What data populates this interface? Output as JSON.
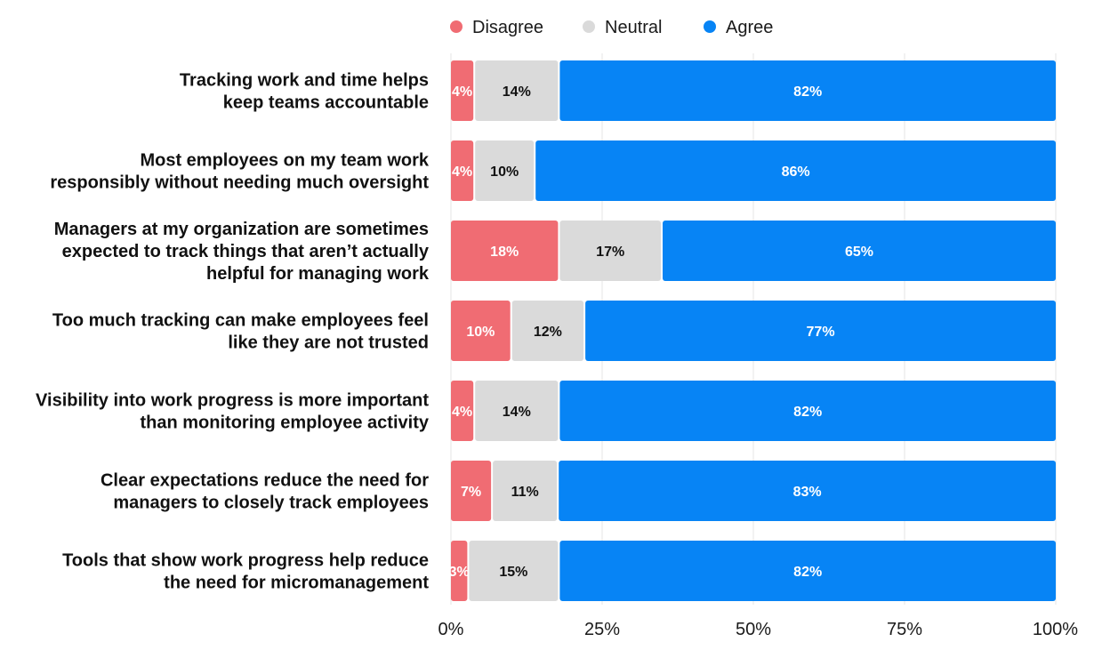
{
  "chart_data": {
    "type": "bar",
    "orientation": "horizontal",
    "stacked": true,
    "categories": [
      [
        "Tracking work and time helps",
        "keep teams accountable"
      ],
      [
        "Most employees on my team work",
        "responsibly without needing much oversight"
      ],
      [
        "Managers at my organization are sometimes",
        "expected to track things that aren’t actually",
        "helpful for managing work"
      ],
      [
        "Too much tracking can make employees feel",
        "like they are not trusted"
      ],
      [
        "Visibility into work progress is more important",
        "than monitoring employee activity"
      ],
      [
        "Clear expectations reduce the need for",
        "managers to closely track employees"
      ],
      [
        "Tools that show work progress help reduce",
        "the need for micromanagement"
      ]
    ],
    "series": [
      {
        "name": "Disagree",
        "color": "#F06C73",
        "label_color": "#ffffff",
        "values": [
          4,
          4,
          18,
          10,
          4,
          7,
          3
        ]
      },
      {
        "name": "Neutral",
        "color": "#DADADA",
        "label_color": "#111111",
        "values": [
          14,
          10,
          17,
          12,
          14,
          11,
          15
        ]
      },
      {
        "name": "Agree",
        "color": "#0784F5",
        "label_color": "#ffffff",
        "values": [
          82,
          86,
          65,
          77,
          82,
          83,
          82
        ]
      }
    ],
    "value_suffix": "%",
    "xlim": [
      0,
      100
    ],
    "xticks": [
      0,
      25,
      50,
      75,
      100
    ],
    "xtick_labels": [
      "0%",
      "25%",
      "50%",
      "75%",
      "100%"
    ],
    "grid": true,
    "legend_position": "top"
  }
}
